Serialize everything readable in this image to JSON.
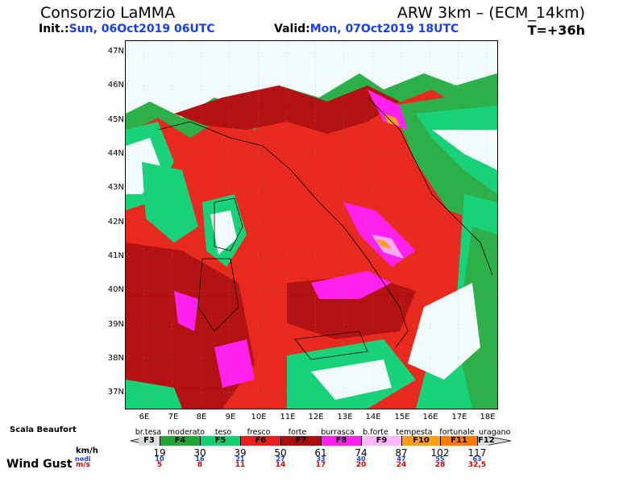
{
  "header": {
    "org": "Consorzio LaMMA",
    "model": "ARW 3km – (ECM_14km)",
    "init_label": "Init.:",
    "init_value": "Sun, 06Oct2019 06UTC",
    "valid_label": "Valid:",
    "valid_value": "Mon, 07Oct2019 18UTC",
    "step": "T=+36h"
  },
  "map": {
    "lat_labels": [
      "47N",
      "46N",
      "45N",
      "44N",
      "43N",
      "42N",
      "41N",
      "40N",
      "39N",
      "38N",
      "37N"
    ],
    "lon_labels": [
      "6E",
      "7E",
      "8E",
      "9E",
      "10E",
      "11E",
      "12E",
      "13E",
      "14E",
      "15E",
      "16E",
      "17E",
      "18E"
    ],
    "colors": {
      "calm": "#f2fbfb",
      "f4": "#2db04a",
      "f5": "#18d27a",
      "f6": "#e82a1e",
      "f7": "#b41212",
      "f8": "#ff22ee",
      "f9": "#ffaaff",
      "f10": "#ff9d1a"
    }
  },
  "legend": {
    "title": "Scala Beaufort",
    "categories": [
      "br.tesa",
      "moderato",
      "teso",
      "fresco",
      "forte",
      "burrasca",
      "b.forte",
      "tempesta",
      "fortunale",
      "uragano"
    ],
    "classes": [
      {
        "label": "F3",
        "color": "#d8dede"
      },
      {
        "label": "F4",
        "color": "#22a63a"
      },
      {
        "label": "F5",
        "color": "#14d070"
      },
      {
        "label": "F6",
        "color": "#e81e1e"
      },
      {
        "label": "F7",
        "color": "#a81010"
      },
      {
        "label": "F8",
        "color": "#ff22ee"
      },
      {
        "label": "F9",
        "color": "#ffb6ff"
      },
      {
        "label": "F10",
        "color": "#ff9d1a"
      },
      {
        "label": "F11",
        "color": "#ff7a00"
      },
      {
        "label": "F12",
        "color": "#d8dede"
      }
    ],
    "unit_kmh": "km/h",
    "unit_nodi": "nodi",
    "unit_ms": "m/s",
    "label": "Wind Gust",
    "kmh": [
      "19",
      "30",
      "39",
      "50",
      "61",
      "74",
      "87",
      "102",
      "117"
    ],
    "nodi": [
      "10",
      "16",
      "21",
      "27",
      "33",
      "40",
      "47",
      "55",
      "63"
    ],
    "ms": [
      "5",
      "8",
      "11",
      "14",
      "17",
      "20",
      "24",
      "28",
      "32,5"
    ]
  }
}
